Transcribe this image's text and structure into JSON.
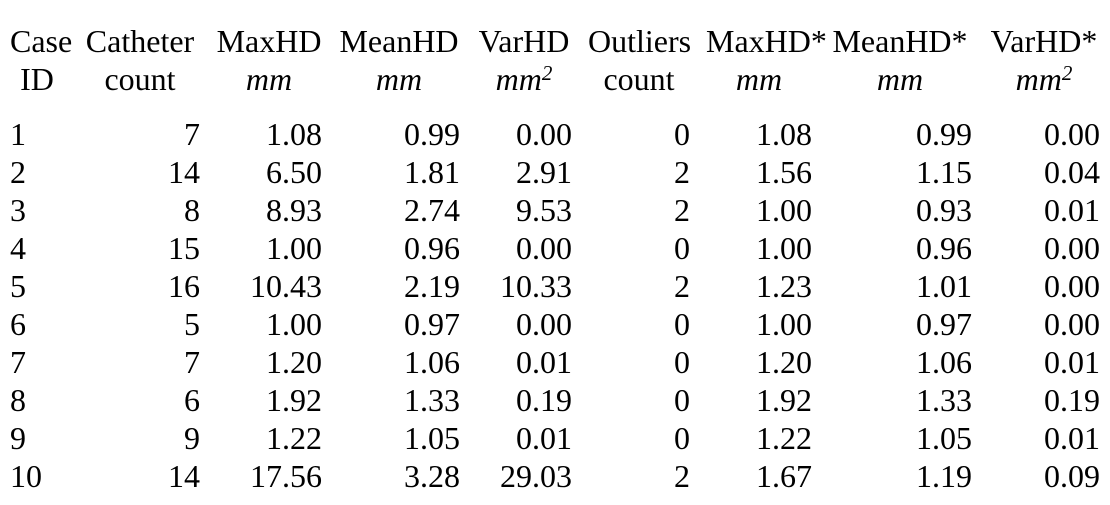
{
  "table": {
    "columns": [
      {
        "id": "case-id",
        "line1": "Case",
        "line2": "ID",
        "unit_italic": false,
        "unit_sup": null
      },
      {
        "id": "catheter-count",
        "line1": "Catheter",
        "line2": "count",
        "unit_italic": false,
        "unit_sup": null
      },
      {
        "id": "maxhd",
        "line1": "MaxHD",
        "line2": "mm",
        "unit_italic": true,
        "unit_sup": null
      },
      {
        "id": "meanhd",
        "line1": "MeanHD",
        "line2": "mm",
        "unit_italic": true,
        "unit_sup": null
      },
      {
        "id": "varhd",
        "line1": "VarHD",
        "line2": "mm",
        "unit_italic": true,
        "unit_sup": "2"
      },
      {
        "id": "outliers-count",
        "line1": "Outliers",
        "line2": "count",
        "unit_italic": false,
        "unit_sup": null
      },
      {
        "id": "maxhd-star",
        "line1": "MaxHD*",
        "line2": "mm",
        "unit_italic": true,
        "unit_sup": null
      },
      {
        "id": "meanhd-star",
        "line1": "MeanHD*",
        "line2": "mm",
        "unit_italic": true,
        "unit_sup": null
      },
      {
        "id": "varhd-star",
        "line1": "VarHD*",
        "line2": "mm",
        "unit_italic": true,
        "unit_sup": "2"
      }
    ],
    "rows": [
      [
        "1",
        "7",
        "1.08",
        "0.99",
        "0.00",
        "0",
        "1.08",
        "0.99",
        "0.00"
      ],
      [
        "2",
        "14",
        "6.50",
        "1.81",
        "2.91",
        "2",
        "1.56",
        "1.15",
        "0.04"
      ],
      [
        "3",
        "8",
        "8.93",
        "2.74",
        "9.53",
        "2",
        "1.00",
        "0.93",
        "0.01"
      ],
      [
        "4",
        "15",
        "1.00",
        "0.96",
        "0.00",
        "0",
        "1.00",
        "0.96",
        "0.00"
      ],
      [
        "5",
        "16",
        "10.43",
        "2.19",
        "10.33",
        "2",
        "1.23",
        "1.01",
        "0.00"
      ],
      [
        "6",
        "5",
        "1.00",
        "0.97",
        "0.00",
        "0",
        "1.00",
        "0.97",
        "0.00"
      ],
      [
        "7",
        "7",
        "1.20",
        "1.06",
        "0.01",
        "0",
        "1.20",
        "1.06",
        "0.01"
      ],
      [
        "8",
        "6",
        "1.92",
        "1.33",
        "0.19",
        "0",
        "1.92",
        "1.33",
        "0.19"
      ],
      [
        "9",
        "9",
        "1.22",
        "1.05",
        "0.01",
        "0",
        "1.22",
        "1.05",
        "0.01"
      ],
      [
        "10",
        "14",
        "17.56",
        "3.28",
        "29.03",
        "2",
        "1.67",
        "1.19",
        "0.09"
      ]
    ]
  }
}
